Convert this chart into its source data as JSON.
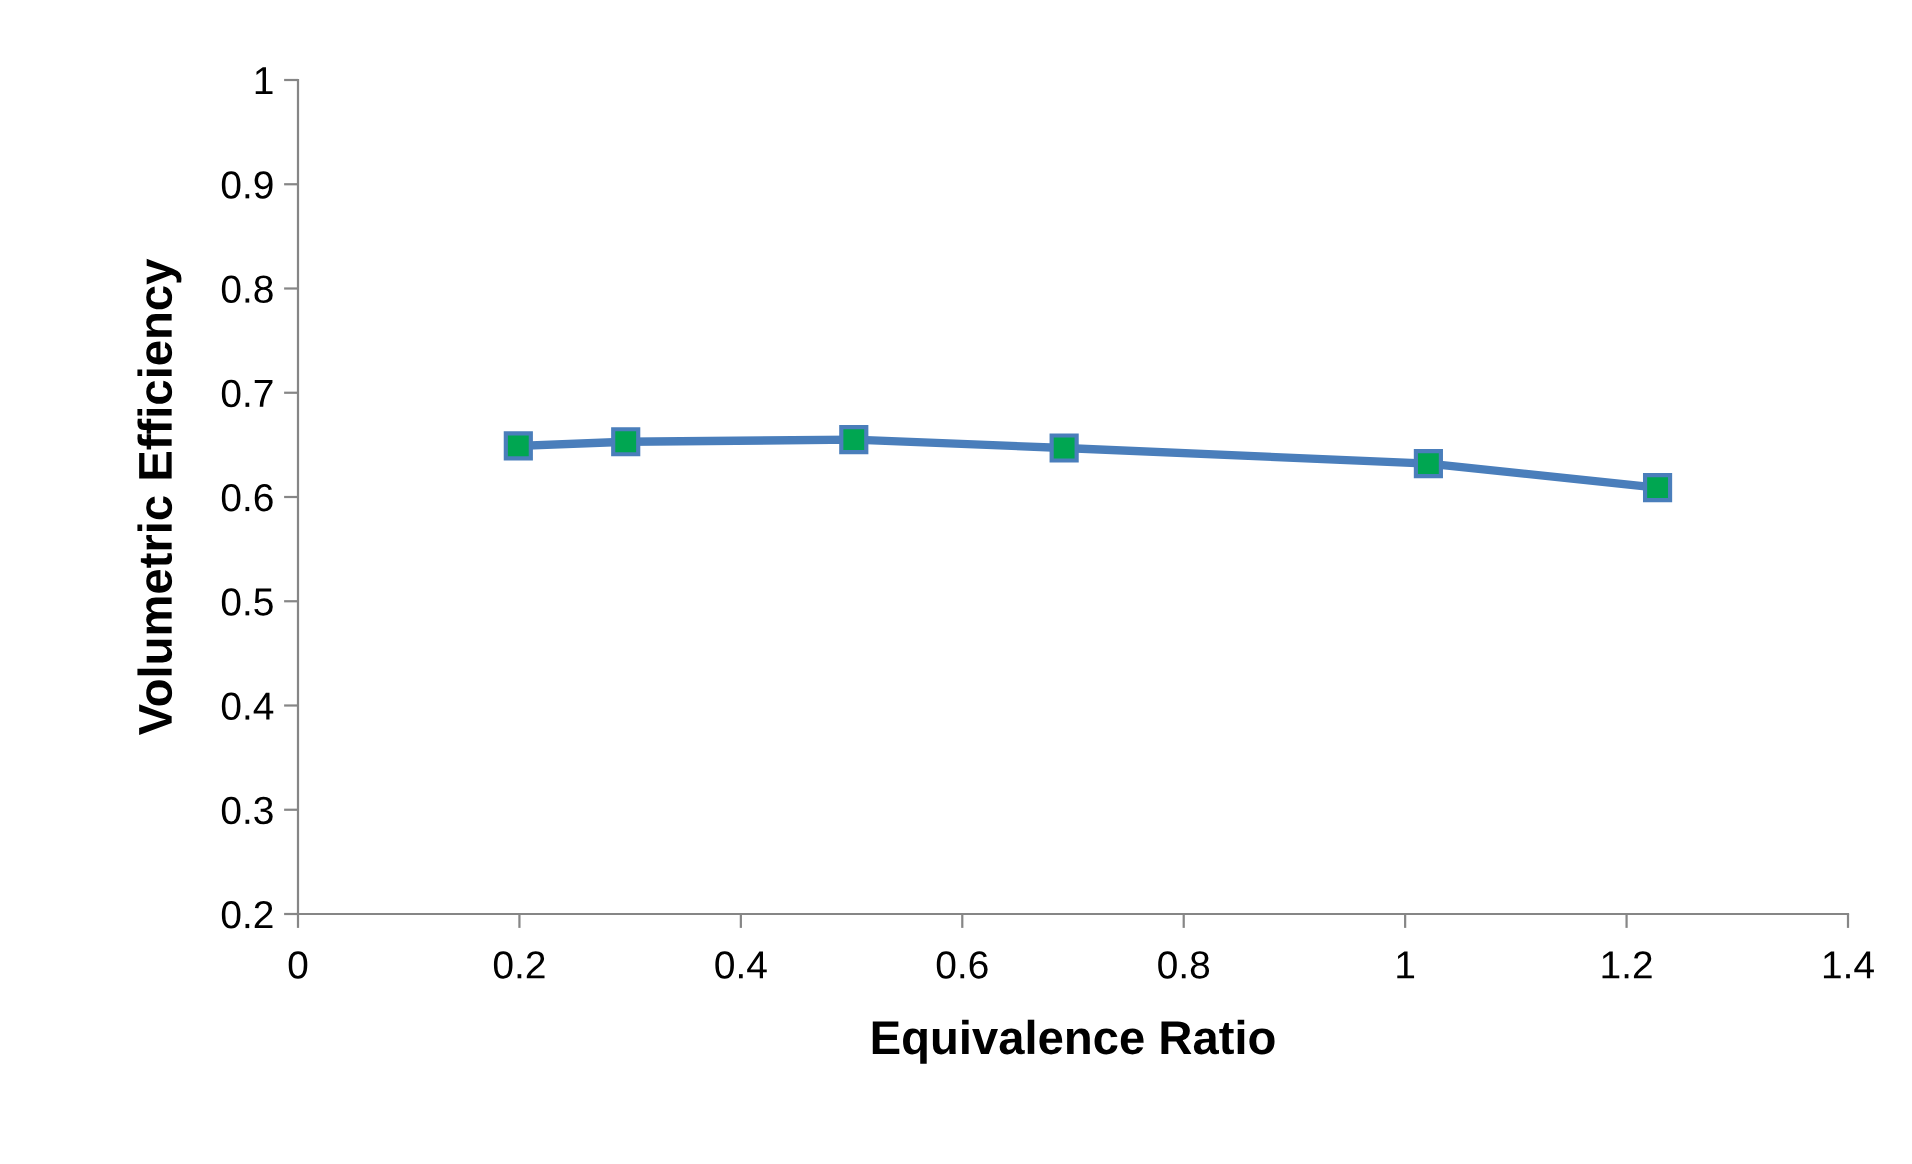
{
  "chart_data": {
    "type": "line",
    "xlabel": "Equivalence Ratio",
    "ylabel": "Volumetric Efficiency",
    "x": [
      0.199,
      0.296,
      0.502,
      0.692,
      1.021,
      1.228
    ],
    "series": [
      {
        "color": "#4a7ebb",
        "colors": [
          "#00a651",
          "#00a651",
          "#00a651",
          "#00a651",
          "#00a651",
          "#00a651"
        ],
        "values": [
          0.649,
          0.653,
          0.655,
          0.647,
          0.632,
          0.609
        ]
      }
    ],
    "xlim": [
      0,
      1.4
    ],
    "xticks": [
      0,
      0.2,
      0.4,
      0.6,
      0.8,
      1,
      1.2,
      1.4
    ],
    "ylim": [
      0.2,
      1
    ],
    "yticks": [
      0.2,
      0.3,
      0.4,
      0.5,
      0.6,
      0.7,
      0.8,
      0.9,
      1
    ],
    "grid": false,
    "legend": false,
    "marker": "square",
    "line_style": "solid"
  }
}
